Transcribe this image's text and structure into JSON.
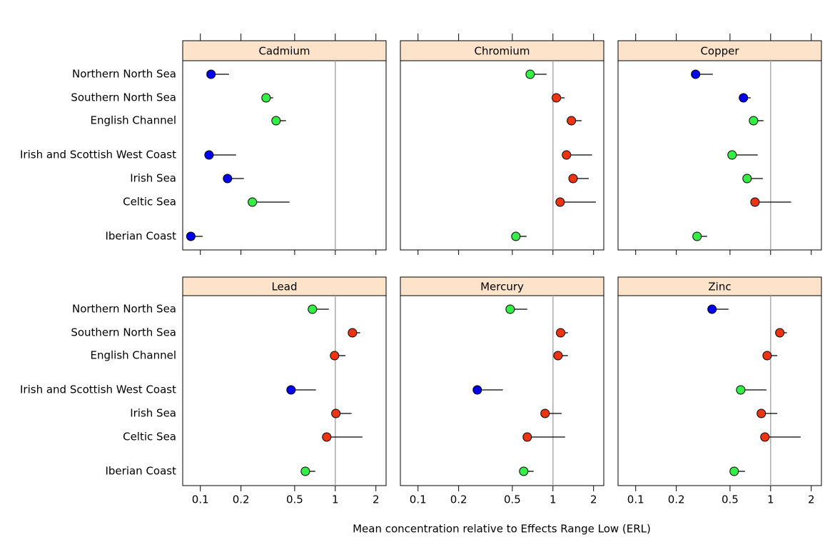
{
  "categories": [
    "Northern North Sea",
    "Southern North Sea",
    "English Channel",
    "Irish and Scottish West Coast",
    "Irish Sea",
    "Celtic Sea",
    "Iberian Coast"
  ],
  "xlabel": "Mean concentration relative to Effects Range Low (ERL)",
  "chart_data": [
    {
      "type": "dot",
      "title": "Cadmium",
      "log_x": true,
      "xlim": [
        0.074,
        2.38
      ],
      "xticks": [
        0.1,
        0.2,
        0.5,
        1,
        2
      ],
      "refline": 1,
      "values": [
        0.12,
        0.307,
        0.364,
        0.116,
        0.159,
        0.243,
        0.085
      ],
      "upper": [
        0.163,
        0.346,
        0.431,
        0.184,
        0.21,
        0.458,
        0.104
      ],
      "colors": [
        "#0000ee",
        "#33ee44",
        "#33ee44",
        "#0000ee",
        "#0000ee",
        "#33ee44",
        "#0000ee"
      ]
    },
    {
      "type": "dot",
      "title": "Chromium",
      "log_x": true,
      "xlim": [
        0.074,
        2.38
      ],
      "xticks": [
        0.1,
        0.2,
        0.5,
        1,
        2
      ],
      "refline": 1,
      "values": [
        0.678,
        1.06,
        1.37,
        1.26,
        1.41,
        1.13,
        0.531
      ],
      "upper": [
        0.896,
        1.22,
        1.63,
        1.95,
        1.84,
        2.08,
        0.637
      ],
      "colors": [
        "#33ee44",
        "#ee3311",
        "#ee3311",
        "#ee3311",
        "#ee3311",
        "#ee3311",
        "#33ee44"
      ]
    },
    {
      "type": "dot",
      "title": "Copper",
      "log_x": true,
      "xlim": [
        0.074,
        2.38
      ],
      "xticks": [
        0.1,
        0.2,
        0.5,
        1,
        2
      ],
      "refline": 1,
      "values": [
        0.278,
        0.629,
        0.747,
        0.518,
        0.669,
        0.766,
        0.285
      ],
      "upper": [
        0.373,
        0.711,
        0.886,
        0.803,
        0.875,
        1.42,
        0.338
      ],
      "colors": [
        "#0000ee",
        "#0000ee",
        "#33ee44",
        "#33ee44",
        "#33ee44",
        "#ee3311",
        "#33ee44"
      ]
    },
    {
      "type": "dot",
      "title": "Lead",
      "log_x": true,
      "xlim": [
        0.074,
        2.38
      ],
      "xticks": [
        0.1,
        0.2,
        0.5,
        1,
        2
      ],
      "refline": 1,
      "values": [
        0.677,
        1.34,
        0.988,
        0.47,
        1.01,
        0.864,
        0.6
      ],
      "upper": [
        0.896,
        1.53,
        1.19,
        0.719,
        1.32,
        1.59,
        0.711
      ],
      "colors": [
        "#33ee44",
        "#ee3311",
        "#ee3311",
        "#0000ee",
        "#ee3311",
        "#ee3311",
        "#33ee44"
      ]
    },
    {
      "type": "dot",
      "title": "Mercury",
      "log_x": true,
      "xlim": [
        0.074,
        2.38
      ],
      "xticks": [
        0.1,
        0.2,
        0.5,
        1,
        2
      ],
      "refline": 1,
      "values": [
        0.482,
        1.14,
        1.09,
        0.275,
        0.874,
        0.645,
        0.607
      ],
      "upper": [
        0.645,
        1.29,
        1.29,
        0.426,
        1.16,
        1.23,
        0.719
      ],
      "colors": [
        "#33ee44",
        "#ee3311",
        "#ee3311",
        "#0000ee",
        "#ee3311",
        "#ee3311",
        "#33ee44"
      ]
    },
    {
      "type": "dot",
      "title": "Zinc",
      "log_x": true,
      "xlim": [
        0.074,
        2.38
      ],
      "xticks": [
        0.1,
        0.2,
        0.5,
        1,
        2
      ],
      "refline": 1,
      "values": [
        0.368,
        1.17,
        0.942,
        0.6,
        0.853,
        0.907,
        0.537
      ],
      "upper": [
        0.487,
        1.32,
        1.12,
        0.93,
        1.12,
        1.67,
        0.645
      ],
      "colors": [
        "#0000ee",
        "#ee3311",
        "#ee3311",
        "#33ee44",
        "#ee3311",
        "#ee3311",
        "#33ee44"
      ]
    }
  ]
}
